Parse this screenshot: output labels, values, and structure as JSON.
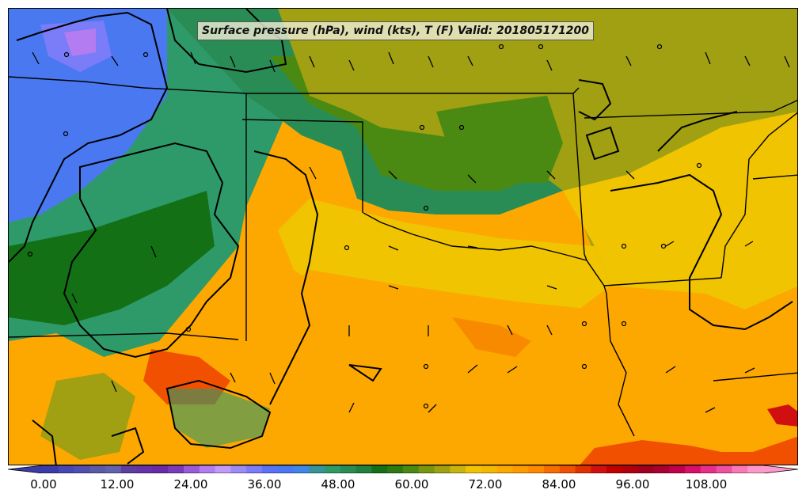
{
  "map": {
    "title": "Surface pressure (hPa), wind (kts), T (F) Valid: 201805171200",
    "fields": [
      "surface-pressure-contours",
      "wind-barbs",
      "temperature-fill"
    ],
    "region": "southern-plains"
  },
  "colorbar": {
    "min": 0,
    "max": 116,
    "step": 3,
    "extend": "both",
    "tick_labels": [
      "0.00",
      "12.00",
      "24.00",
      "36.00",
      "48.00",
      "60.00",
      "72.00",
      "84.00",
      "96.00",
      "108.00"
    ],
    "colors": [
      "#3b3ba8",
      "#4747b4",
      "#4f4fae",
      "#5a5aa8",
      "#6262ac",
      "#5a3ea0",
      "#6632a8",
      "#6a2aa6",
      "#7a3bb8",
      "#9a5bd8",
      "#b37cf0",
      "#c39af8",
      "#9a8cf5",
      "#7b7cf8",
      "#5a72f8",
      "#4a78f0",
      "#3f86e6",
      "#37939a",
      "#2e9a6a",
      "#2a8c55",
      "#1f8040",
      "#137015",
      "#2e7a10",
      "#4a8a12",
      "#7a9610",
      "#a0a012",
      "#c8b40e",
      "#f0c400",
      "#f4b800",
      "#fba800",
      "#fd9a00",
      "#ff8a00",
      "#f76d00",
      "#f05000",
      "#e03000",
      "#d01010",
      "#c00000",
      "#b00010",
      "#a00020",
      "#a80032",
      "#c0004a",
      "#d8106a",
      "#e8308a",
      "#f050a0",
      "#f878b8",
      "#ff99cc"
    ]
  },
  "map_colors": {
    "cold": "#4a78f0",
    "cool_green": "#2e9a6a",
    "dark_green": "#137015",
    "olive": "#a0a012",
    "yellow": "#f0c400",
    "orange": "#fda800",
    "hot_orange": "#f05000",
    "red": "#d01010",
    "boundaries": "#000000"
  }
}
